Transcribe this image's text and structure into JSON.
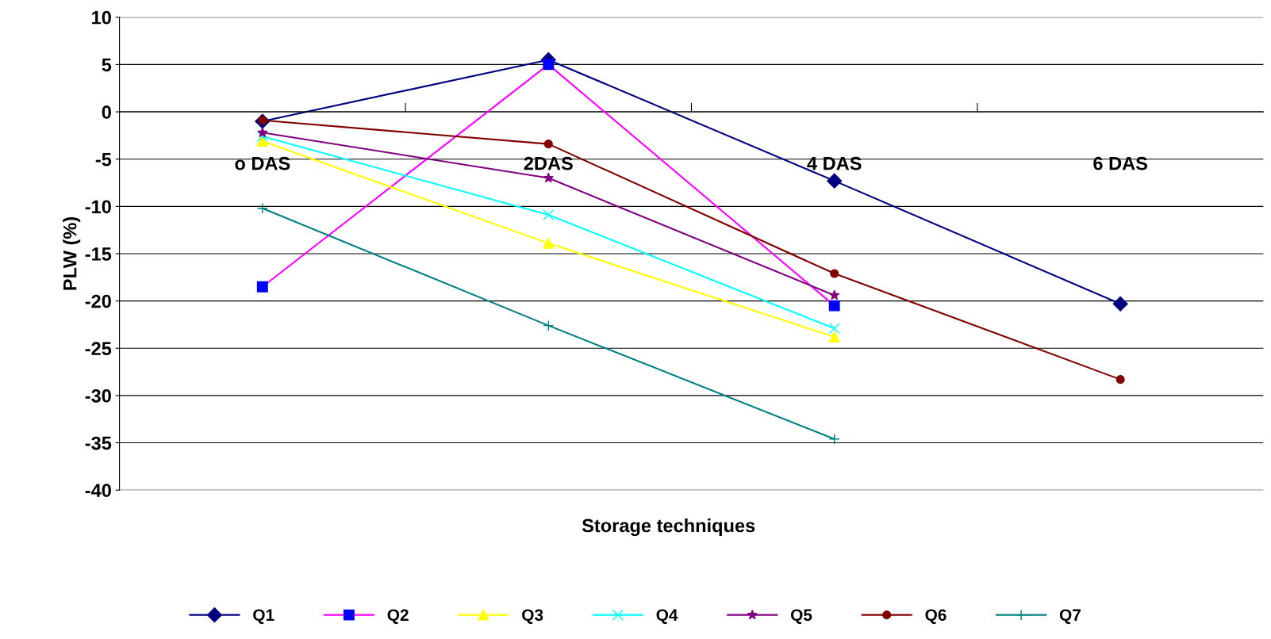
{
  "chart_data": {
    "type": "line",
    "xlabel": "Storage techniques",
    "ylabel": "PLW (%)",
    "categories": [
      "o DAS",
      "2DAS",
      "4 DAS",
      "6 DAS"
    ],
    "series": [
      {
        "name": "Q1",
        "color": "#000080",
        "marker": "diamond",
        "values": [
          -1.0,
          5.5,
          -7.3,
          -20.3
        ]
      },
      {
        "name": "Q2",
        "color": "#ff00ff",
        "marker": "square",
        "colors": [
          "#0000ff",
          "#0000ff",
          "#0000ff",
          "#0000ff"
        ],
        "values": [
          -18.5,
          5.0,
          -20.5,
          null
        ]
      },
      {
        "name": "Q3",
        "color": "#ffff00",
        "marker": "triangle",
        "values": [
          -3.1,
          -13.9,
          -23.8,
          null
        ]
      },
      {
        "name": "Q4",
        "color": "#00ffff",
        "marker": "cross",
        "values": [
          -2.6,
          -10.9,
          -22.9,
          null
        ]
      },
      {
        "name": "Q5",
        "color": "#800080",
        "marker": "star",
        "values": [
          -2.2,
          -7.0,
          -19.4,
          null
        ]
      },
      {
        "name": "Q6",
        "color": "#800000",
        "marker": "circle",
        "values": [
          -0.9,
          -3.4,
          -17.1,
          -28.3
        ]
      },
      {
        "name": "Q7",
        "color": "#008080",
        "marker": "plus",
        "values": [
          -10.2,
          -22.6,
          -34.6,
          null
        ]
      }
    ],
    "ylim": [
      -40,
      10
    ],
    "yticks": [
      -40,
      -35,
      -30,
      -25,
      -20,
      -15,
      -10,
      -5,
      0,
      5,
      10
    ],
    "grid": "y",
    "legend": "bottom"
  }
}
